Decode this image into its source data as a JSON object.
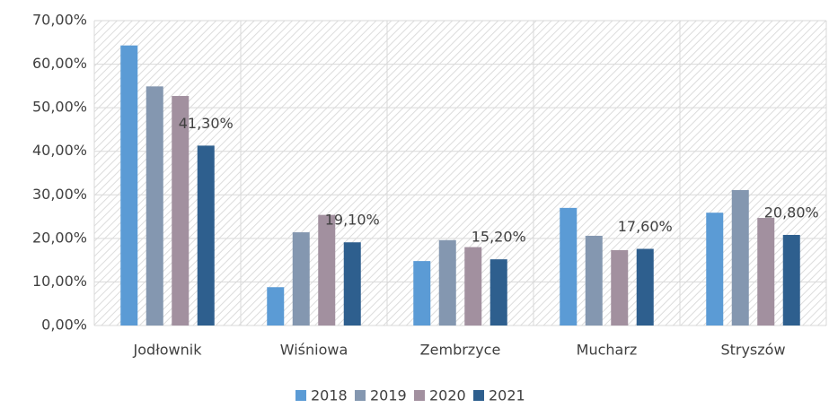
{
  "chart_data": {
    "type": "bar",
    "categories": [
      "Jodłownik",
      "Wiśniowa",
      "Zembrzyce",
      "Mucharz",
      "Stryszów"
    ],
    "series": [
      {
        "name": "2018",
        "color": "#5b9bd5",
        "values": [
          64.3,
          8.8,
          14.8,
          27.0,
          25.9
        ]
      },
      {
        "name": "2019",
        "color": "#8497b0",
        "values": [
          54.9,
          21.4,
          19.6,
          20.6,
          31.1
        ]
      },
      {
        "name": "2020",
        "color": "#a2909f",
        "values": [
          52.7,
          25.4,
          18.0,
          17.3,
          24.7
        ]
      },
      {
        "name": "2021",
        "color": "#2e5f8e",
        "values": [
          41.3,
          19.1,
          15.2,
          17.6,
          20.8
        ],
        "value_labels": [
          "41,30%",
          "19,10%",
          "15,20%",
          "17,60%",
          "20,80%"
        ]
      }
    ],
    "ylim": [
      0,
      70
    ],
    "yticks": [
      {
        "value": 0,
        "label": "0,00%"
      },
      {
        "value": 10,
        "label": "10,00%"
      },
      {
        "value": 20,
        "label": "20,00%"
      },
      {
        "value": 30,
        "label": "30,00%"
      },
      {
        "value": 40,
        "label": "40,00%"
      },
      {
        "value": 50,
        "label": "50,00%"
      },
      {
        "value": 60,
        "label": "60,00%"
      },
      {
        "value": 70,
        "label": "70,00%"
      }
    ],
    "grid": true,
    "legend": "bottom"
  }
}
